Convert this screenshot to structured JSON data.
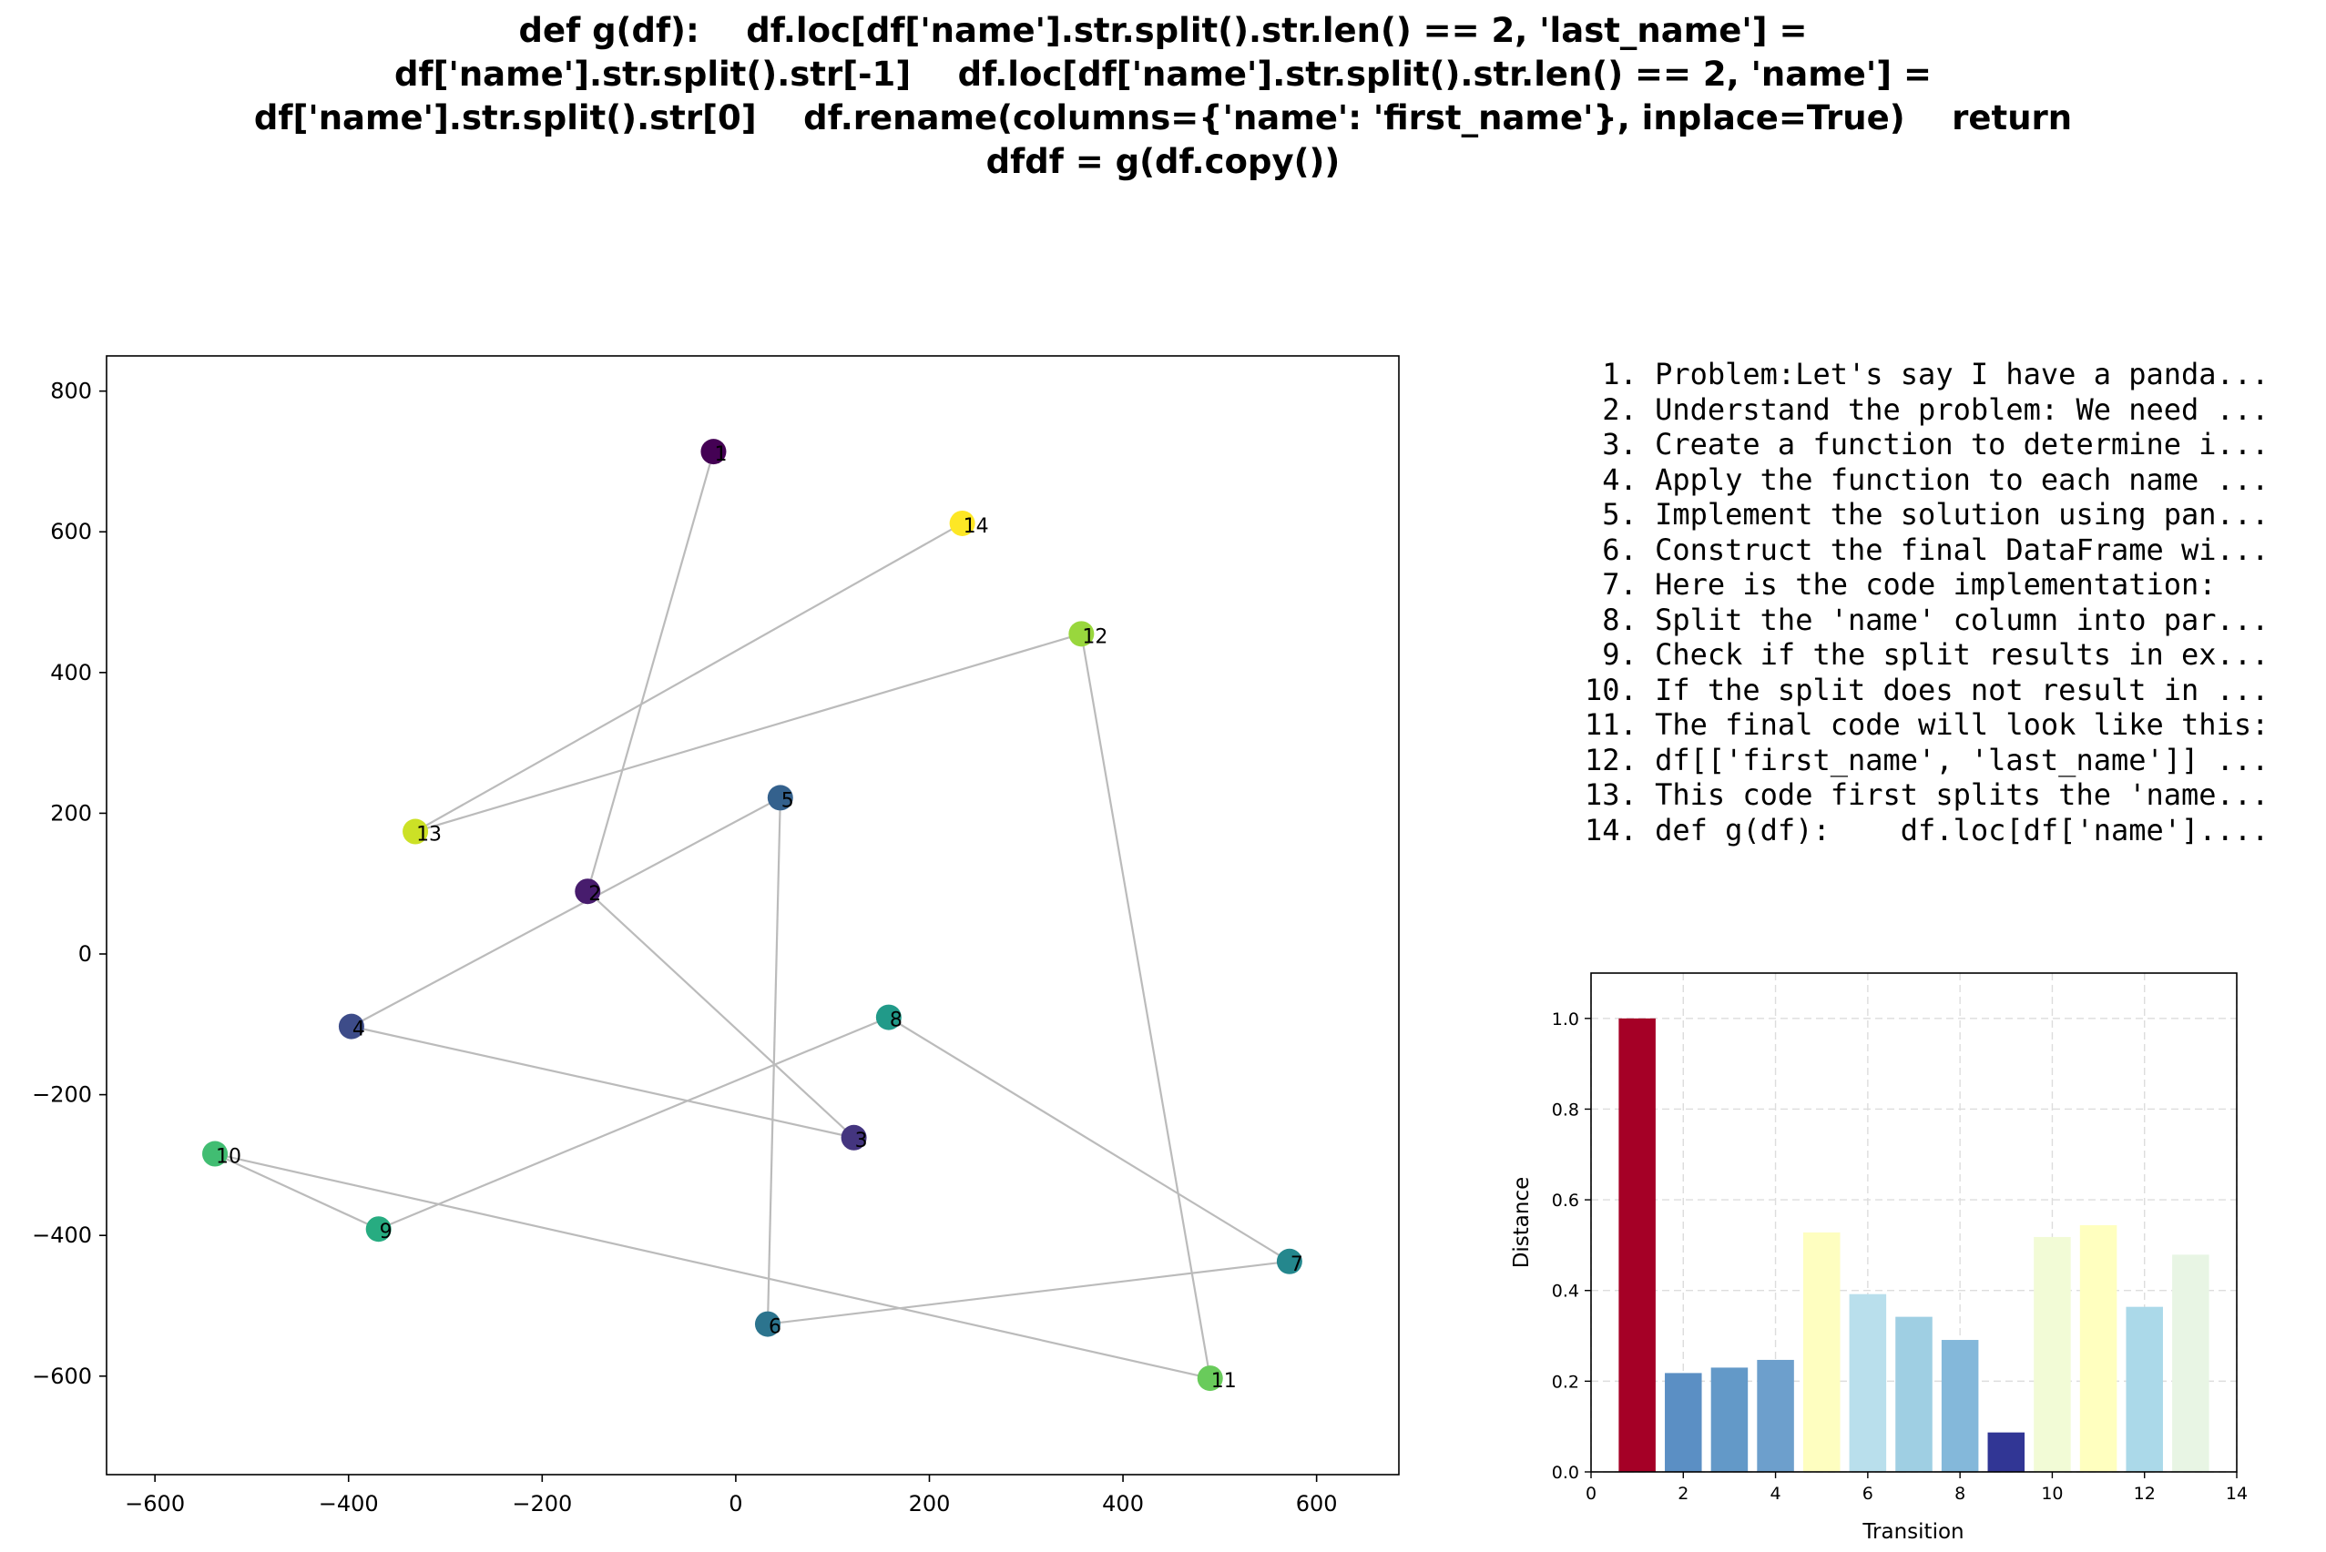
{
  "title_lines": [
    "def g(df):    df.loc[df['name'].str.split().str.len() == 2, 'last_name'] =",
    "df['name'].str.split().str[-1]    df.loc[df['name'].str.split().str.len() == 2, 'name'] =",
    "df['name'].str.split().str[0]    df.rename(columns={'name': 'first_name'}, inplace=True)    return",
    "dfdf = g(df.copy())"
  ],
  "steps": [
    " 1. Problem:Let's say I have a panda...",
    " 2. Understand the problem: We need ...",
    " 3. Create a function to determine i...",
    " 4. Apply the function to each name ...",
    " 5. Implement the solution using pan...",
    " 6. Construct the final DataFrame wi...",
    " 7. Here is the code implementation:",
    " 8. Split the 'name' column into par...",
    " 9. Check if the split results in ex...",
    "10. If the split does not result in ...",
    "11. The final code will look like this:",
    "12. df[['first_name', 'last_name']] ...",
    "13. This code first splits the 'name...",
    "14. def g(df):    df.loc[df['name']...."
  ],
  "chart_data": [
    {
      "type": "scatter",
      "title": "",
      "xlabel": "",
      "ylabel": "",
      "xlim": [
        -650,
        685
      ],
      "ylim": [
        -740,
        850
      ],
      "xticks": [
        -600,
        -400,
        -200,
        0,
        200,
        400,
        600
      ],
      "yticks": [
        -600,
        -400,
        -200,
        0,
        200,
        400,
        600,
        800
      ],
      "grid": false,
      "connected_in_order": true,
      "colormap": "viridis",
      "points": [
        {
          "label": "1",
          "x": -23,
          "y": 714
        },
        {
          "label": "2",
          "x": -153,
          "y": 89
        },
        {
          "label": "3",
          "x": 122,
          "y": -261
        },
        {
          "label": "4",
          "x": -397,
          "y": -103
        },
        {
          "label": "5",
          "x": 46,
          "y": 222
        },
        {
          "label": "6",
          "x": 33,
          "y": -526
        },
        {
          "label": "7",
          "x": 572,
          "y": -437
        },
        {
          "label": "8",
          "x": 158,
          "y": -90
        },
        {
          "label": "9",
          "x": -369,
          "y": -391
        },
        {
          "label": "10",
          "x": -538,
          "y": -284
        },
        {
          "label": "11",
          "x": 490,
          "y": -603
        },
        {
          "label": "12",
          "x": 357,
          "y": 455
        },
        {
          "label": "13",
          "x": -331,
          "y": 174
        },
        {
          "label": "14",
          "x": 234,
          "y": 612
        }
      ]
    },
    {
      "type": "bar",
      "title": "",
      "xlabel": "Transition",
      "ylabel": "Distance",
      "xlim": [
        0,
        14
      ],
      "ylim": [
        0,
        1.1
      ],
      "xticks": [
        0,
        2,
        4,
        6,
        8,
        10,
        12,
        14
      ],
      "yticks": [
        0.0,
        0.2,
        0.4,
        0.6,
        0.8,
        1.0
      ],
      "grid": true,
      "colormap": "RdYlBu_r",
      "categories": [
        1,
        2,
        3,
        4,
        5,
        6,
        7,
        8,
        9,
        10,
        11,
        12,
        13
      ],
      "values": [
        1.0,
        0.218,
        0.23,
        0.247,
        0.528,
        0.392,
        0.342,
        0.291,
        0.087,
        0.518,
        0.544,
        0.364,
        0.479
      ],
      "colors": [
        "#a50026",
        "#5b8fc4",
        "#6399c8",
        "#6d9fcc",
        "#fefec0",
        "#b9dfec",
        "#9fcfe3",
        "#84b8da",
        "#313695",
        "#f2fbd6",
        "#ffffbf",
        "#abd9e9",
        "#e8f5e4"
      ]
    }
  ]
}
